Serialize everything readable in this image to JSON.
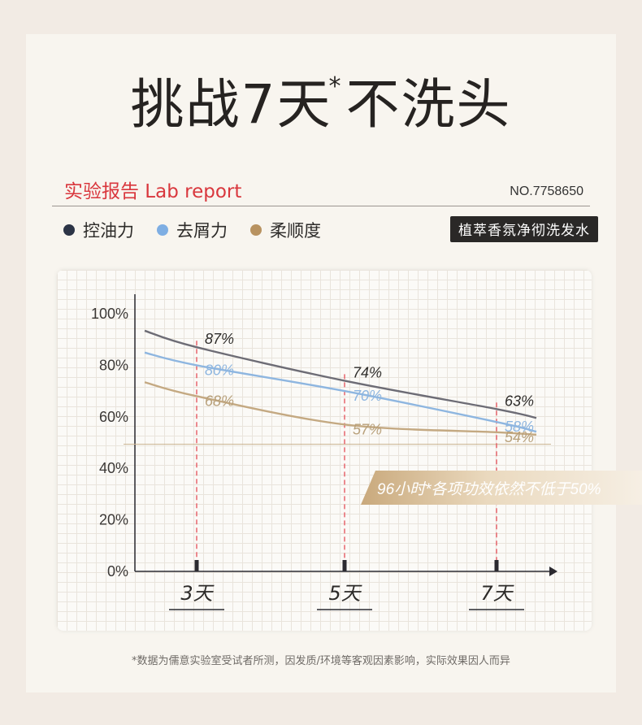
{
  "header": {
    "title_main": "挑战7天",
    "title_mark": "*",
    "title_tail": "不洗头",
    "report_title": "实验报告 Lab report",
    "report_no": "NO.7758650",
    "product_badge": "植萃香氛净彻洗发水"
  },
  "colors": {
    "oil_control": "#6d6c75",
    "anti_dandruff": "#8eb6e0",
    "smoothness": "#c4a982",
    "accent_red": "#d9373d",
    "dark_dot": "#2c3446",
    "blue_dot": "#7eaee3",
    "gold_dot": "#b89260"
  },
  "chart_data": {
    "type": "line",
    "categories": [
      "3天",
      "5天",
      "7天"
    ],
    "ylim": [
      0,
      100
    ],
    "yticks": [
      "100%",
      "80%",
      "60%",
      "40%",
      "20%",
      "0%"
    ],
    "threshold": 50,
    "series": [
      {
        "name": "控油力",
        "values": [
          87,
          74,
          63
        ],
        "labels": [
          "87%",
          "74%",
          "63%"
        ]
      },
      {
        "name": "去屑力",
        "values": [
          80,
          70,
          58
        ],
        "labels": [
          "80%",
          "70%",
          "58%"
        ]
      },
      {
        "name": "柔顺度",
        "values": [
          68,
          57,
          54
        ],
        "labels": [
          "68%",
          "57%",
          "54%"
        ]
      }
    ],
    "annotation": "96小时*各项功效依然不低于50%"
  },
  "footer": {
    "note": "*数据为儒意实验室受试者所测，因发质/环境等客观因素影响，实际效果因人而异"
  }
}
